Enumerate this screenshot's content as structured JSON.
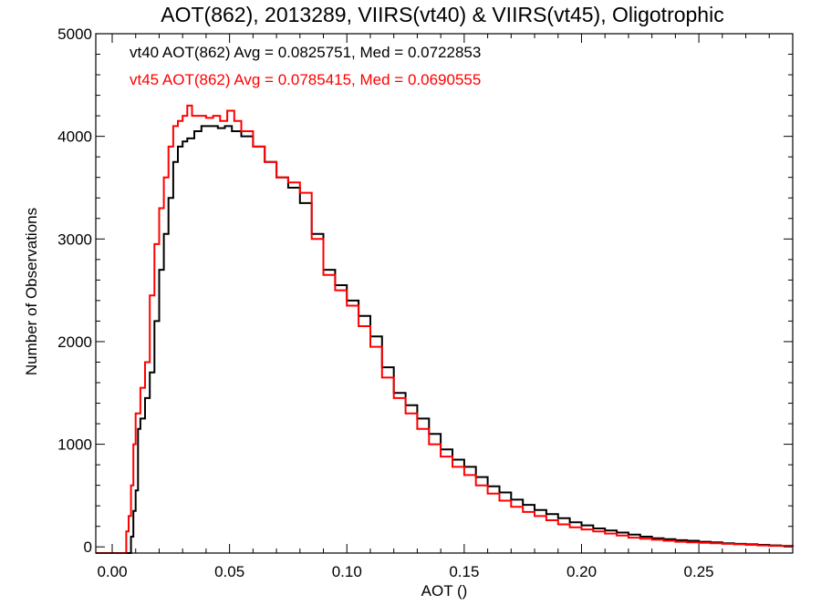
{
  "chart_data": {
    "type": "line",
    "step": true,
    "title": "AOT(862), 2013289, VIIRS(vt40) & VIIRS(vt45), Oligotrophic",
    "xlabel": "AOT ()",
    "ylabel": "Number of Observations",
    "xlim": [
      -0.007,
      0.29
    ],
    "ylim": [
      -60,
      5000
    ],
    "xticks": [
      0.0,
      0.05,
      0.1,
      0.15,
      0.2,
      0.25
    ],
    "xtick_labels": [
      "0.00",
      "0.05",
      "0.10",
      "0.15",
      "0.20",
      "0.25"
    ],
    "yticks": [
      0,
      1000,
      2000,
      3000,
      4000,
      5000
    ],
    "ytick_labels": [
      "0",
      "1000",
      "2000",
      "3000",
      "4000",
      "5000"
    ],
    "grid": false,
    "annotations": [
      {
        "text": "vt40 AOT(862) Avg = 0.0825751, Med = 0.0722853",
        "color": "#000000"
      },
      {
        "text": "vt45 AOT(862) Avg = 0.0785415, Med = 0.0690555",
        "color": "#ff0000"
      }
    ],
    "series": [
      {
        "color": "#000000",
        "x": [
          -0.007,
          0.006,
          0.008,
          0.009,
          0.01,
          0.011,
          0.012,
          0.014,
          0.016,
          0.018,
          0.02,
          0.022,
          0.024,
          0.026,
          0.028,
          0.03,
          0.032,
          0.035,
          0.038,
          0.041,
          0.045,
          0.048,
          0.051,
          0.055,
          0.06,
          0.065,
          0.07,
          0.075,
          0.08,
          0.085,
          0.09,
          0.095,
          0.1,
          0.105,
          0.11,
          0.115,
          0.12,
          0.125,
          0.13,
          0.135,
          0.14,
          0.145,
          0.15,
          0.155,
          0.16,
          0.165,
          0.17,
          0.175,
          0.18,
          0.185,
          0.19,
          0.195,
          0.2,
          0.205,
          0.21,
          0.215,
          0.22,
          0.225,
          0.23,
          0.235,
          0.24,
          0.245,
          0.25,
          0.255,
          0.26,
          0.265,
          0.27,
          0.275,
          0.28,
          0.285,
          0.29
        ],
        "values": [
          -60,
          -60,
          100,
          350,
          550,
          1150,
          1250,
          1450,
          1700,
          2200,
          2700,
          3050,
          3400,
          3750,
          3900,
          3950,
          3980,
          4050,
          4100,
          4100,
          4080,
          4100,
          4050,
          4000,
          3900,
          3750,
          3600,
          3500,
          3350,
          3050,
          2700,
          2550,
          2400,
          2250,
          2050,
          1750,
          1500,
          1380,
          1250,
          1100,
          950,
          850,
          780,
          680,
          590,
          530,
          460,
          410,
          360,
          320,
          280,
          240,
          210,
          180,
          160,
          140,
          120,
          100,
          85,
          75,
          65,
          60,
          50,
          45,
          35,
          30,
          25,
          20,
          15,
          10,
          5
        ]
      },
      {
        "color": "#ff0000",
        "x": [
          -0.007,
          0.005,
          0.006,
          0.007,
          0.008,
          0.009,
          0.01,
          0.012,
          0.014,
          0.016,
          0.018,
          0.02,
          0.022,
          0.024,
          0.026,
          0.028,
          0.03,
          0.032,
          0.034,
          0.037,
          0.04,
          0.043,
          0.046,
          0.049,
          0.052,
          0.055,
          0.06,
          0.065,
          0.07,
          0.075,
          0.08,
          0.085,
          0.09,
          0.095,
          0.1,
          0.105,
          0.11,
          0.115,
          0.12,
          0.125,
          0.13,
          0.135,
          0.14,
          0.145,
          0.15,
          0.155,
          0.16,
          0.165,
          0.17,
          0.175,
          0.18,
          0.185,
          0.19,
          0.195,
          0.2,
          0.205,
          0.21,
          0.215,
          0.22,
          0.225,
          0.23,
          0.235,
          0.24,
          0.245,
          0.25,
          0.255,
          0.26,
          0.265,
          0.27,
          0.275,
          0.28,
          0.285,
          0.29
        ],
        "values": [
          -60,
          -60,
          150,
          300,
          600,
          1000,
          1300,
          1550,
          1800,
          2450,
          2950,
          3300,
          3600,
          3900,
          4100,
          4150,
          4200,
          4300,
          4200,
          4200,
          4180,
          4200,
          4150,
          4250,
          4150,
          4050,
          3900,
          3750,
          3600,
          3550,
          3450,
          3000,
          2650,
          2500,
          2350,
          2150,
          1950,
          1650,
          1450,
          1300,
          1150,
          1000,
          880,
          780,
          700,
          600,
          520,
          450,
          390,
          340,
          300,
          260,
          220,
          190,
          170,
          150,
          130,
          110,
          90,
          80,
          70,
          60,
          50,
          45,
          40,
          35,
          30,
          25,
          20,
          15,
          10,
          10,
          5
        ]
      }
    ]
  }
}
